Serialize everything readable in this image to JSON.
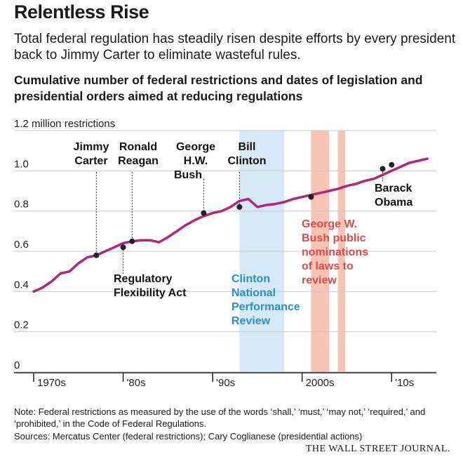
{
  "header": {
    "title": "Relentless Rise",
    "subtitle": "Total federal regulation has steadily risen despite efforts by every president back to Jimmy Carter to eliminate wasteful rules.",
    "chart_title": "Cumulative number of federal restrictions and dates of legislation and presidential orders aimed at reducing regulations"
  },
  "footer": {
    "note": "Note: Federal restrictions as measured by the use of the words ‘shall,’ ‘must,’ ‘may not,’ ‘required,’ and ‘prohibited,’ in the Code of Federal Regulations.",
    "sources": "Sources: Mercatus Center (federal restrictions); Cary Coglianese (presidential actions)",
    "brand": "THE WALL STREET JOURNAL."
  },
  "colors": {
    "line": "#b5257c",
    "marker": "#222222",
    "clinton_band": "#d6e9f7",
    "bush_band": "#f7c4b3",
    "clinton_text": "#2a90c8",
    "bush_text": "#e04a4a",
    "grid": "#c8c8c8"
  },
  "chart_data": {
    "type": "line",
    "ylabel": "1.2 million restrictions",
    "y_unit": "millions of restrictions",
    "ylim": [
      0,
      1.2
    ],
    "xlim": [
      1970,
      2015
    ],
    "yticks": [
      {
        "value": 0,
        "label": "0"
      },
      {
        "value": 0.2,
        "label": "0.2"
      },
      {
        "value": 0.4,
        "label": "0.4"
      },
      {
        "value": 0.6,
        "label": "0.6"
      },
      {
        "value": 0.8,
        "label": "0.8"
      },
      {
        "value": 1.0,
        "label": "1.0"
      },
      {
        "value": 1.2,
        "label": "1.2 million restrictions"
      }
    ],
    "xticks": [
      {
        "value": 1970,
        "label": "1970s"
      },
      {
        "value": 1980,
        "label": "'80s"
      },
      {
        "value": 1990,
        "label": "'90s"
      },
      {
        "value": 2000,
        "label": "2000s"
      },
      {
        "value": 2010,
        "label": "'10s"
      }
    ],
    "grid": true,
    "series": [
      {
        "x": [
          1970,
          1971,
          1972,
          1973,
          1974,
          1975,
          1976,
          1977,
          1978,
          1979,
          1980,
          1981,
          1982,
          1983,
          1984,
          1985,
          1986,
          1987,
          1988,
          1989,
          1990,
          1991,
          1992,
          1993,
          1994,
          1995,
          1996,
          1997,
          1998,
          1999,
          2000,
          2001,
          2002,
          2003,
          2004,
          2005,
          2006,
          2007,
          2008,
          2009,
          2010,
          2011,
          2012,
          2013,
          2014
        ],
        "y": [
          0.4,
          0.42,
          0.45,
          0.49,
          0.5,
          0.54,
          0.57,
          0.58,
          0.6,
          0.62,
          0.64,
          0.65,
          0.655,
          0.655,
          0.645,
          0.67,
          0.7,
          0.73,
          0.755,
          0.775,
          0.79,
          0.8,
          0.82,
          0.85,
          0.86,
          0.82,
          0.83,
          0.835,
          0.845,
          0.86,
          0.87,
          0.88,
          0.89,
          0.9,
          0.91,
          0.925,
          0.935,
          0.95,
          0.96,
          0.98,
          1.0,
          1.02,
          1.04,
          1.05,
          1.06
        ]
      }
    ],
    "markers": [
      {
        "x": 1977,
        "y": 0.58,
        "label": "Jimmy Carter",
        "label_lines": [
          "Jimmy",
          "Carter"
        ]
      },
      {
        "x": 1980,
        "y": 0.62,
        "label": "Regulatory Flexibility Act",
        "label_lines": [
          "Regulatory",
          "Flexibility Act"
        ]
      },
      {
        "x": 1981,
        "y": 0.65,
        "label": "Ronald Reagan",
        "label_lines": [
          "Ronald",
          "Reagan"
        ]
      },
      {
        "x": 1989,
        "y": 0.79,
        "label": "George H.W. Bush",
        "label_lines": [
          "George",
          "H.W.",
          "Bush"
        ]
      },
      {
        "x": 1993,
        "y": 0.82,
        "label": "Bill Clinton",
        "label_lines": [
          "Bill",
          "Clinton"
        ]
      },
      {
        "x": 2001,
        "y": 0.87,
        "label": "",
        "label_lines": []
      },
      {
        "x": 2009,
        "y": 1.01,
        "label": "Barack Obama",
        "label_lines": [
          "Barack",
          "Obama"
        ]
      },
      {
        "x": 2010,
        "y": 1.03,
        "label": "",
        "label_lines": []
      }
    ],
    "bands": [
      {
        "from": 1993,
        "to": 1998,
        "kind": "clinton"
      },
      {
        "from": 2001,
        "to": 2003,
        "kind": "bush"
      },
      {
        "from": 2004,
        "to": 2004.8,
        "kind": "bush"
      }
    ],
    "annotations": {
      "clinton_review": [
        "Clinton",
        "National",
        "Performance",
        "Review"
      ],
      "bush_review": [
        "George W.",
        "Bush public",
        "nominations",
        "of laws to",
        "review"
      ]
    }
  }
}
